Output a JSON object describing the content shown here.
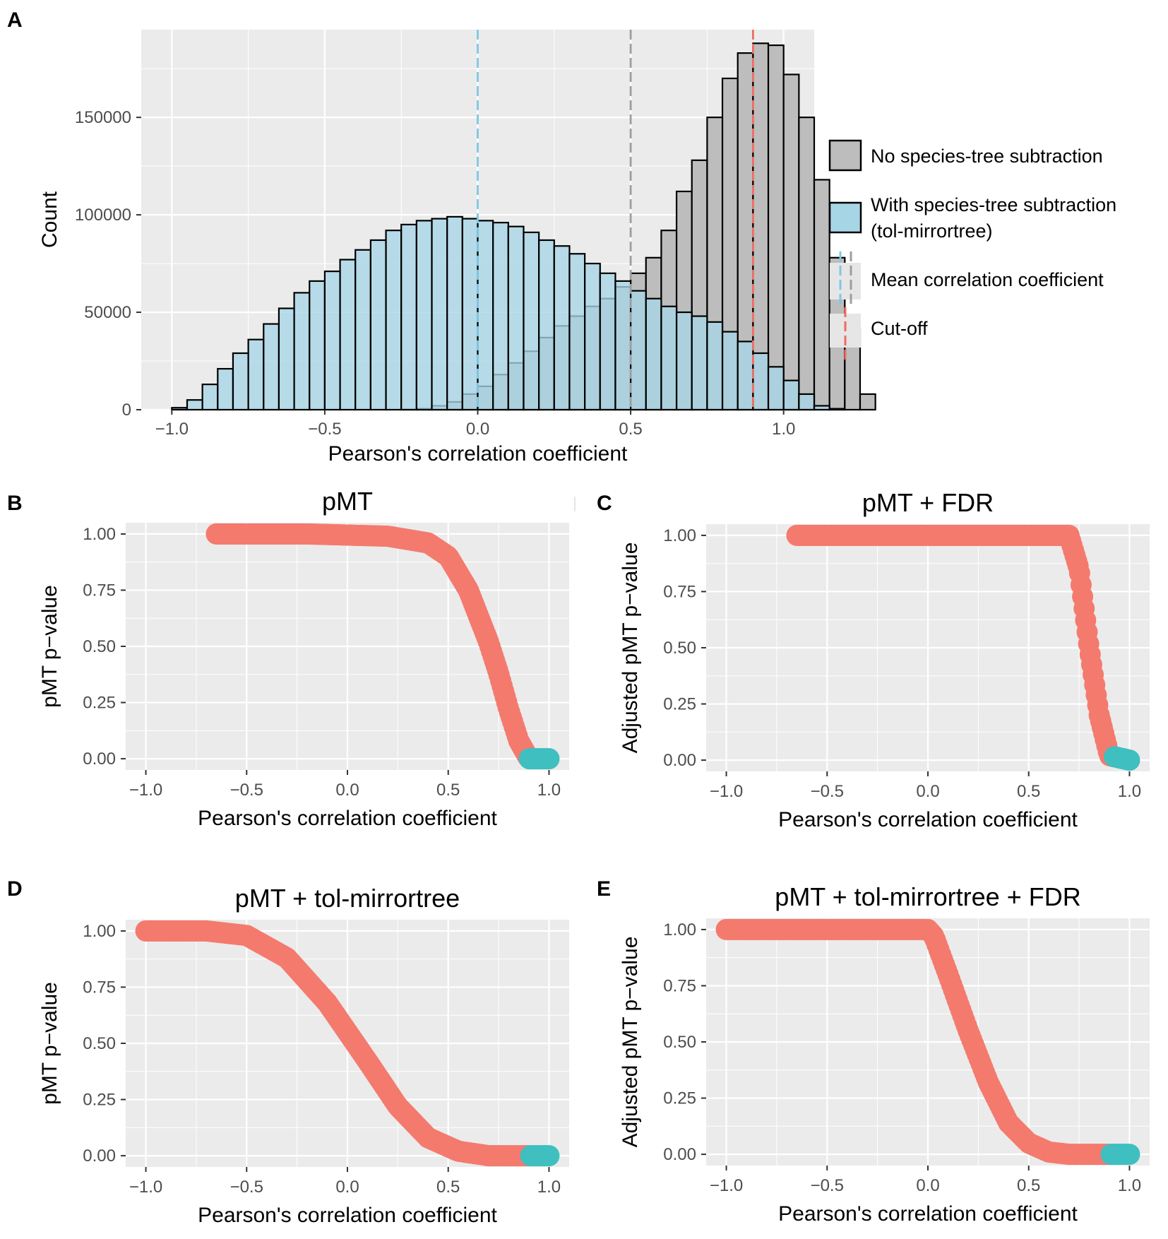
{
  "colors": {
    "panel_bg": "#ebebeb",
    "grid": "#ffffff",
    "no_subtraction_fill": "#bdbdbd",
    "with_subtraction_fill": "#a6d5e6",
    "bar_outline": "#000000",
    "mean_no_subtraction": "#9e9e9e",
    "mean_with_subtraction": "#7ec8e3",
    "cutoff": "#f06b61",
    "nonsignificant_points": "#f47a6e",
    "significant_points": "#3fbfbf"
  },
  "panels": {
    "A": {
      "letter": "A"
    },
    "B": {
      "letter": "B"
    },
    "C": {
      "letter": "C"
    },
    "D": {
      "letter": "D"
    },
    "E": {
      "letter": "E"
    }
  },
  "legend": {
    "no_subtraction": "No species-tree subtraction",
    "with_subtraction_line1": "With species-tree subtraction",
    "with_subtraction_line2": "(tol-mirrortree)",
    "mean": "Mean correlation coefficient",
    "cutoff": "Cut-off"
  },
  "chart_data": [
    {
      "id": "A",
      "type": "bar",
      "subtype": "overlaid-histogram",
      "title": "",
      "xlabel": "Pearson's correlation coefficient",
      "ylabel": "Count",
      "xlim": [
        -1.1,
        1.1
      ],
      "ylim": [
        0,
        195000
      ],
      "x_ticks": [
        -1.0,
        -0.5,
        0.0,
        0.5,
        1.0
      ],
      "x_tick_labels": [
        "−1.0",
        "−0.5",
        "0.0",
        "0.5",
        "1.0"
      ],
      "y_ticks": [
        0,
        50000,
        100000,
        150000
      ],
      "y_tick_labels": [
        "0",
        "50000",
        "100000",
        "150000"
      ],
      "bin_width": 0.05,
      "bin_start": -1.0,
      "series": [
        {
          "name": "No species-tree subtraction",
          "values": [
            0,
            0,
            0,
            0,
            0,
            0,
            0,
            0,
            0,
            0,
            0,
            0,
            0,
            0,
            0,
            100,
            500,
            2000,
            4000,
            8000,
            12000,
            18000,
            24000,
            30000,
            37000,
            43000,
            48000,
            53000,
            57000,
            63000,
            70000,
            78000,
            92000,
            112000,
            128000,
            150000,
            170000,
            183000,
            188000,
            187000,
            172000,
            150000,
            118000,
            78000,
            42000,
            8000
          ]
        },
        {
          "name": "With species-tree subtraction (tol-mirrortree)",
          "values": [
            1000,
            5000,
            13000,
            21000,
            29000,
            36000,
            44000,
            52000,
            60000,
            66000,
            71000,
            77000,
            82000,
            87000,
            92000,
            95000,
            97000,
            98000,
            99000,
            98000,
            97000,
            96000,
            94000,
            91000,
            87000,
            84000,
            80000,
            75000,
            70000,
            66000,
            61000,
            57000,
            53000,
            50000,
            48000,
            45000,
            40000,
            35000,
            29000,
            22000,
            15000,
            8000,
            2000,
            500,
            0,
            0
          ]
        }
      ],
      "vlines": [
        {
          "name": "Mean correlation coefficient (with subtraction)",
          "x": 0.0
        },
        {
          "name": "Mean correlation coefficient (no subtraction)",
          "x": 0.5
        },
        {
          "name": "Cut-off",
          "x": 0.9
        }
      ],
      "legend_position": "right"
    },
    {
      "id": "B",
      "type": "scatter",
      "title": "pMT",
      "xlabel": "Pearson's correlation coefficient",
      "ylabel": "pMT p−value",
      "xlim": [
        -1.1,
        1.1
      ],
      "ylim": [
        -0.05,
        1.05
      ],
      "x_ticks": [
        -1.0,
        -0.5,
        0.0,
        0.5,
        1.0
      ],
      "x_tick_labels": [
        "−1.0",
        "−0.5",
        "0.0",
        "0.5",
        "1.0"
      ],
      "y_ticks": [
        0.0,
        0.25,
        0.5,
        0.75,
        1.0
      ],
      "y_tick_labels": [
        "0.00",
        "0.25",
        "0.50",
        "0.75",
        "1.00"
      ],
      "cutoff": 0.9,
      "curve": {
        "x": [
          -0.65,
          -0.2,
          0.2,
          0.4,
          0.5,
          0.6,
          0.7,
          0.75,
          0.8,
          0.85,
          0.9,
          1.0
        ],
        "y": [
          1.0,
          1.0,
          0.99,
          0.96,
          0.9,
          0.75,
          0.52,
          0.38,
          0.22,
          0.08,
          0.0,
          0.0
        ]
      }
    },
    {
      "id": "C",
      "type": "scatter",
      "title": "pMT + FDR",
      "xlabel": "Pearson's correlation coefficient",
      "ylabel": "Adjusted pMT p−value",
      "xlim": [
        -1.1,
        1.1
      ],
      "ylim": [
        -0.05,
        1.05
      ],
      "x_ticks": [
        -1.0,
        -0.5,
        0.0,
        0.5,
        1.0
      ],
      "x_tick_labels": [
        "−1.0",
        "−0.5",
        "0.0",
        "0.5",
        "1.0"
      ],
      "y_ticks": [
        0.0,
        0.25,
        0.5,
        0.75,
        1.0
      ],
      "y_tick_labels": [
        "0.00",
        "0.25",
        "0.50",
        "0.75",
        "1.00"
      ],
      "cutoff": 0.92,
      "curve": {
        "x": [
          -0.65,
          0.7,
          0.75,
          0.8,
          0.85,
          0.9,
          1.0
        ],
        "y": [
          1.0,
          1.0,
          0.85,
          0.5,
          0.2,
          0.02,
          0.0
        ]
      }
    },
    {
      "id": "D",
      "type": "scatter",
      "title": "pMT + tol-mirrortree",
      "xlabel": "Pearson's correlation coefficient",
      "ylabel": "pMT p−value",
      "xlim": [
        -1.1,
        1.1
      ],
      "ylim": [
        -0.05,
        1.05
      ],
      "x_ticks": [
        -1.0,
        -0.5,
        0.0,
        0.5,
        1.0
      ],
      "x_tick_labels": [
        "−1.0",
        "−0.5",
        "0.0",
        "0.5",
        "1.0"
      ],
      "y_ticks": [
        0.0,
        0.25,
        0.5,
        0.75,
        1.0
      ],
      "y_tick_labels": [
        "0.00",
        "0.25",
        "0.50",
        "0.75",
        "1.00"
      ],
      "cutoff": 0.9,
      "curve": {
        "x": [
          -1.0,
          -0.7,
          -0.5,
          -0.3,
          -0.1,
          0.0,
          0.1,
          0.25,
          0.4,
          0.55,
          0.7,
          1.0
        ],
        "y": [
          1.0,
          1.0,
          0.98,
          0.88,
          0.68,
          0.55,
          0.42,
          0.22,
          0.08,
          0.02,
          0.0,
          0.0
        ]
      }
    },
    {
      "id": "E",
      "type": "scatter",
      "title": "pMT + tol-mirrortree + FDR",
      "xlabel": "Pearson's correlation coefficient",
      "ylabel": "Adjusted pMT p−value",
      "xlim": [
        -1.1,
        1.1
      ],
      "ylim": [
        -0.05,
        1.05
      ],
      "x_ticks": [
        -1.0,
        -0.5,
        0.0,
        0.5,
        1.0
      ],
      "x_tick_labels": [
        "−1.0",
        "−0.5",
        "0.0",
        "0.5",
        "1.0"
      ],
      "y_ticks": [
        0.0,
        0.25,
        0.5,
        0.75,
        1.0
      ],
      "y_tick_labels": [
        "0.00",
        "0.25",
        "0.50",
        "0.75",
        "1.00"
      ],
      "cutoff": 0.9,
      "curve": {
        "x": [
          -1.0,
          0.0,
          0.03,
          0.1,
          0.2,
          0.3,
          0.4,
          0.5,
          0.6,
          0.7,
          1.0
        ],
        "y": [
          1.0,
          1.0,
          0.97,
          0.8,
          0.55,
          0.32,
          0.14,
          0.05,
          0.01,
          0.0,
          0.0
        ]
      }
    }
  ]
}
